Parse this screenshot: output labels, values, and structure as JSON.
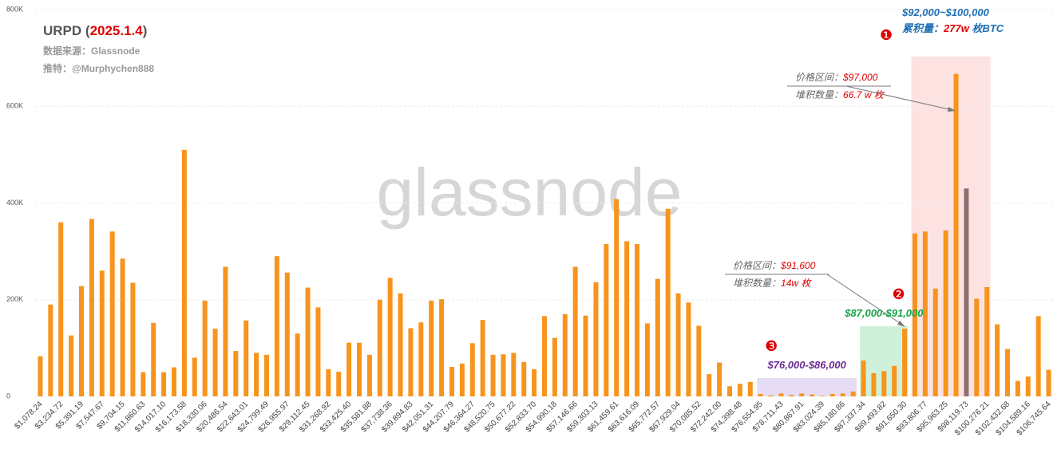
{
  "chart_data": {
    "type": "bar",
    "title_parts": [
      "URPD (",
      "2025.1.4",
      ")"
    ],
    "source": "数据来源：Glassnode",
    "twitter": "推特：@Murphychen888",
    "watermark": "glassnode",
    "categories": [
      "$1,078.24",
      null,
      "$3,234.72",
      null,
      "$5,391.19",
      null,
      "$7,547.67",
      null,
      "$9,704.15",
      null,
      "$11,860.63",
      null,
      "$14,017.10",
      null,
      "$16,173.58",
      null,
      "$18,330.06",
      null,
      "$20,486.54",
      null,
      "$22,643.01",
      null,
      "$24,799.49",
      null,
      "$26,955.97",
      null,
      "$29,112.45",
      null,
      "$31,268.92",
      null,
      "$33,425.40",
      null,
      "$35,581.88",
      null,
      "$37,738.36",
      null,
      "$39,894.83",
      null,
      "$42,051.31",
      null,
      "$44,207.79",
      null,
      "$46,364.27",
      null,
      "$48,520.75",
      null,
      "$50,677.22",
      null,
      "$52,833.70",
      null,
      "$54,990.18",
      null,
      "$57,146.66",
      null,
      "$59,303.13",
      null,
      "$61,459.61",
      null,
      "$63,616.09",
      null,
      "$65,772.57",
      null,
      "$67,929.04",
      null,
      "$70,085.52",
      null,
      "$72,242.00",
      null,
      "$74,398.48",
      null,
      "$76,554.95",
      null,
      "$78,711.43",
      null,
      "$80,867.91",
      null,
      "$83,024.39",
      null,
      "$85,180.86",
      null,
      "$87,337.34",
      null,
      "$89,493.82",
      null,
      "$91,650.30",
      null,
      "$93,806.77",
      null,
      "$95,963.25",
      null,
      "$98,119.73",
      null,
      "$100,276.21",
      null,
      "$102,432.68",
      null,
      "$104,589.16",
      null,
      "$106,745.64"
    ],
    "values": [
      83000,
      190000,
      360000,
      126000,
      228000,
      367000,
      260000,
      341000,
      285000,
      235000,
      50000,
      152000,
      50000,
      60000,
      510000,
      80000,
      198000,
      140000,
      268000,
      94000,
      157000,
      90000,
      86000,
      290000,
      256000,
      130000,
      225000,
      184000,
      56000,
      51000,
      111000,
      111000,
      86000,
      200000,
      245000,
      213000,
      141000,
      153000,
      198000,
      201000,
      61000,
      68000,
      110000,
      158000,
      86000,
      87000,
      90000,
      71000,
      56000,
      166000,
      121000,
      170000,
      268000,
      167000,
      236000,
      315000,
      408000,
      321000,
      315000,
      151000,
      243000,
      388000,
      213000,
      194000,
      146000,
      46000,
      70000,
      21000,
      26000,
      30000,
      5000,
      2000,
      6000,
      3000,
      6000,
      4000,
      1000,
      5000,
      6000,
      10000,
      74000,
      48000,
      52000,
      63000,
      140000,
      337000,
      341000,
      223000,
      343000,
      667000,
      430000,
      202000,
      226000,
      149000,
      98000,
      32000,
      41000,
      166000,
      55000
    ],
    "color": "#f7941d",
    "highlight_bar": 90,
    "highlight_color": "#8e6e6f",
    "ylim": [
      0,
      800000
    ],
    "yticks": [
      0,
      {
        "value": 200000,
        "label": "200K"
      },
      {
        "value": 400000,
        "label": "400K"
      },
      {
        "value": 600000,
        "label": "600K"
      },
      {
        "value": 800000,
        "label": "800K"
      }
    ],
    "grid": true,
    "regions": [
      {
        "first": 70,
        "last": 79,
        "top": 38000,
        "color": "rgba(200,180,230,0.45)",
        "marker": "❸",
        "label": "$76,000-$86,000",
        "label_color": "#6a2c91"
      },
      {
        "first": 80,
        "last": 84,
        "top": 145000,
        "color": "rgba(150,225,170,0.45)",
        "marker": "❷",
        "label": "$87,000-$91,000",
        "label_color": "#16a34a"
      },
      {
        "first": 85,
        "last": 92,
        "top": 703000,
        "color": "rgba(250,190,190,0.45)",
        "marker": "❶",
        "label": "$92,000~$100,000",
        "label_color": "#1f6fb5"
      }
    ],
    "accumulation": [
      "累积量：",
      "277w",
      " 枚BTC"
    ],
    "callouts": [
      {
        "price_label": "价格区间：",
        "price": "$97,000",
        "qty_label": "堆积数量：",
        "qty": "66.7 w 枚"
      },
      {
        "price_label": "价格区间：",
        "price": "$91,600",
        "qty_label": "堆积数量：",
        "qty": "14w 枚"
      }
    ]
  }
}
